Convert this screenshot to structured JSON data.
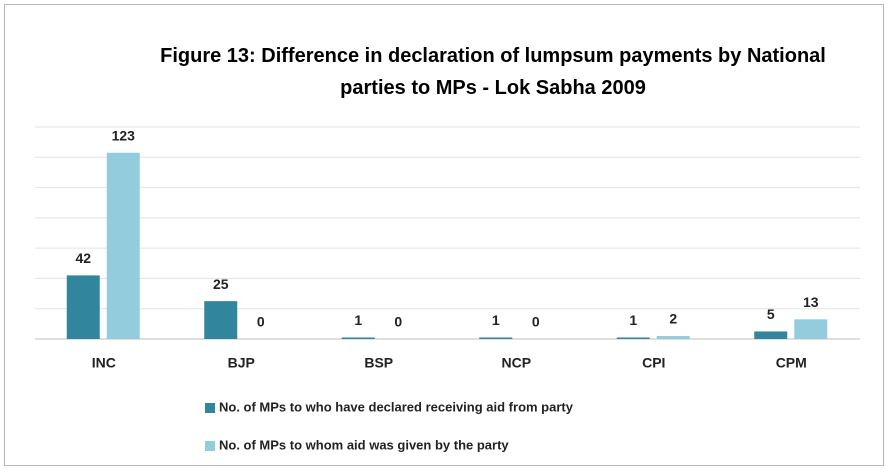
{
  "chart_data": {
    "type": "bar",
    "title": "Figure 13: Difference in declaration of lumpsum payments by National parties to MPs - Lok Sabha 2009",
    "categories": [
      "INC",
      "BJP",
      "BSP",
      "NCP",
      "CPI",
      "CPM"
    ],
    "series": [
      {
        "name": "No. of MPs to who have declared receiving aid from party",
        "color": "#31859c",
        "values": [
          42,
          25,
          1,
          1,
          1,
          5
        ]
      },
      {
        "name": "No. of MPs to whom aid was given by the party",
        "color": "#93cddd",
        "values": [
          123,
          0,
          0,
          0,
          2,
          13
        ]
      }
    ],
    "ylim": [
      0,
      140
    ],
    "yticks": [
      0,
      20,
      40,
      60,
      80,
      100,
      120,
      140
    ],
    "grid": true,
    "legend": "bottom"
  }
}
